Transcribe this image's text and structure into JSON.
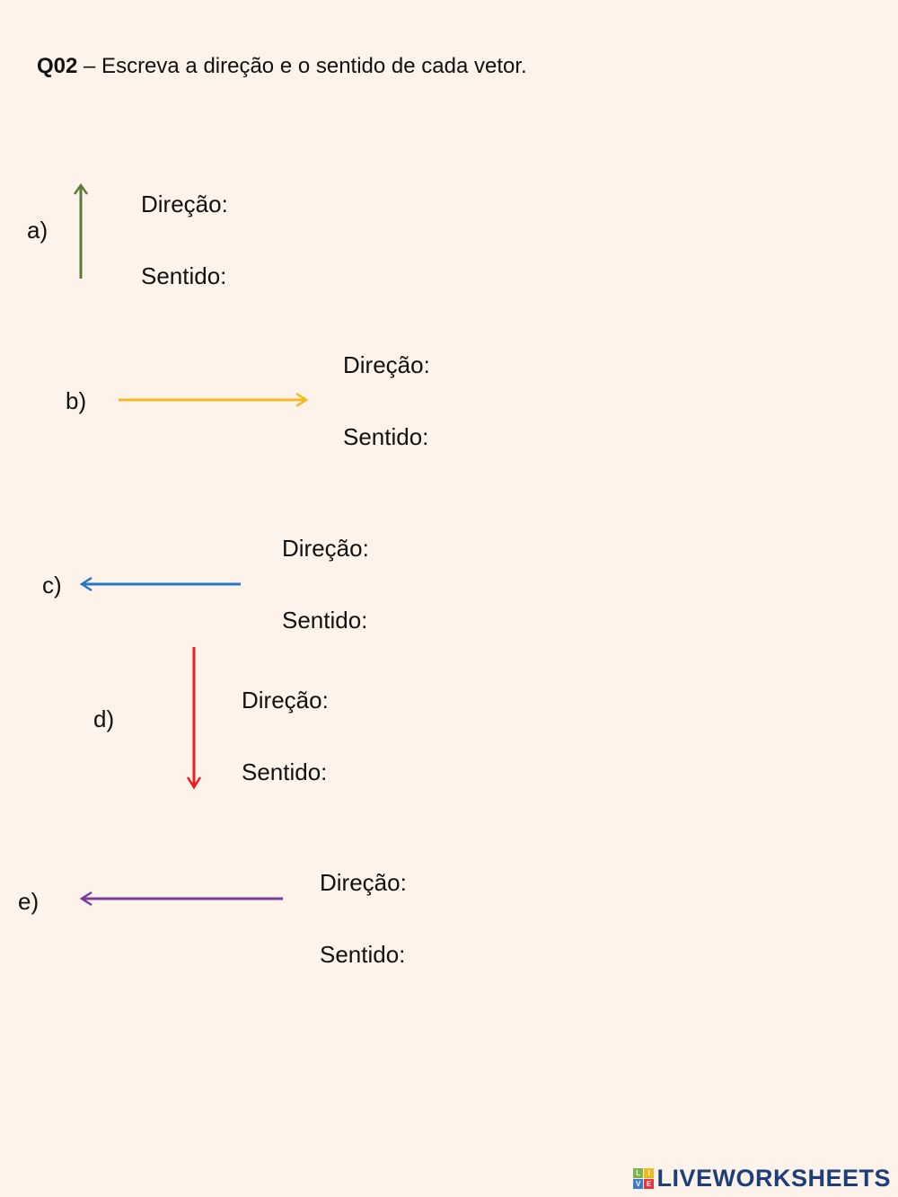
{
  "title": {
    "number": "Q02",
    "text": " – Escreva a direção e o sentido de cada vetor."
  },
  "items": [
    {
      "label": "a)",
      "direction_label": "Direção:",
      "sense_label": "Sentido:",
      "arrow": "up",
      "color": "#5b7a3a"
    },
    {
      "label": "b)",
      "direction_label": "Direção:",
      "sense_label": "Sentido:",
      "arrow": "right",
      "color": "#f4b81c"
    },
    {
      "label": "c)",
      "direction_label": "Direção:",
      "sense_label": "Sentido:",
      "arrow": "left",
      "color": "#2379c4"
    },
    {
      "label": "d)",
      "direction_label": "Direção:",
      "sense_label": "Sentido:",
      "arrow": "down",
      "color": "#ee1c1c"
    },
    {
      "label": "e)",
      "direction_label": "Direção:",
      "sense_label": "Sentido:",
      "arrow": "left",
      "color": "#7a3aa0"
    }
  ],
  "footer": {
    "logo_text": "LIVEWORKSHEETS",
    "logo_mark": [
      "L",
      "I",
      "V",
      "E"
    ],
    "logo_color": "#1c3f7a"
  }
}
